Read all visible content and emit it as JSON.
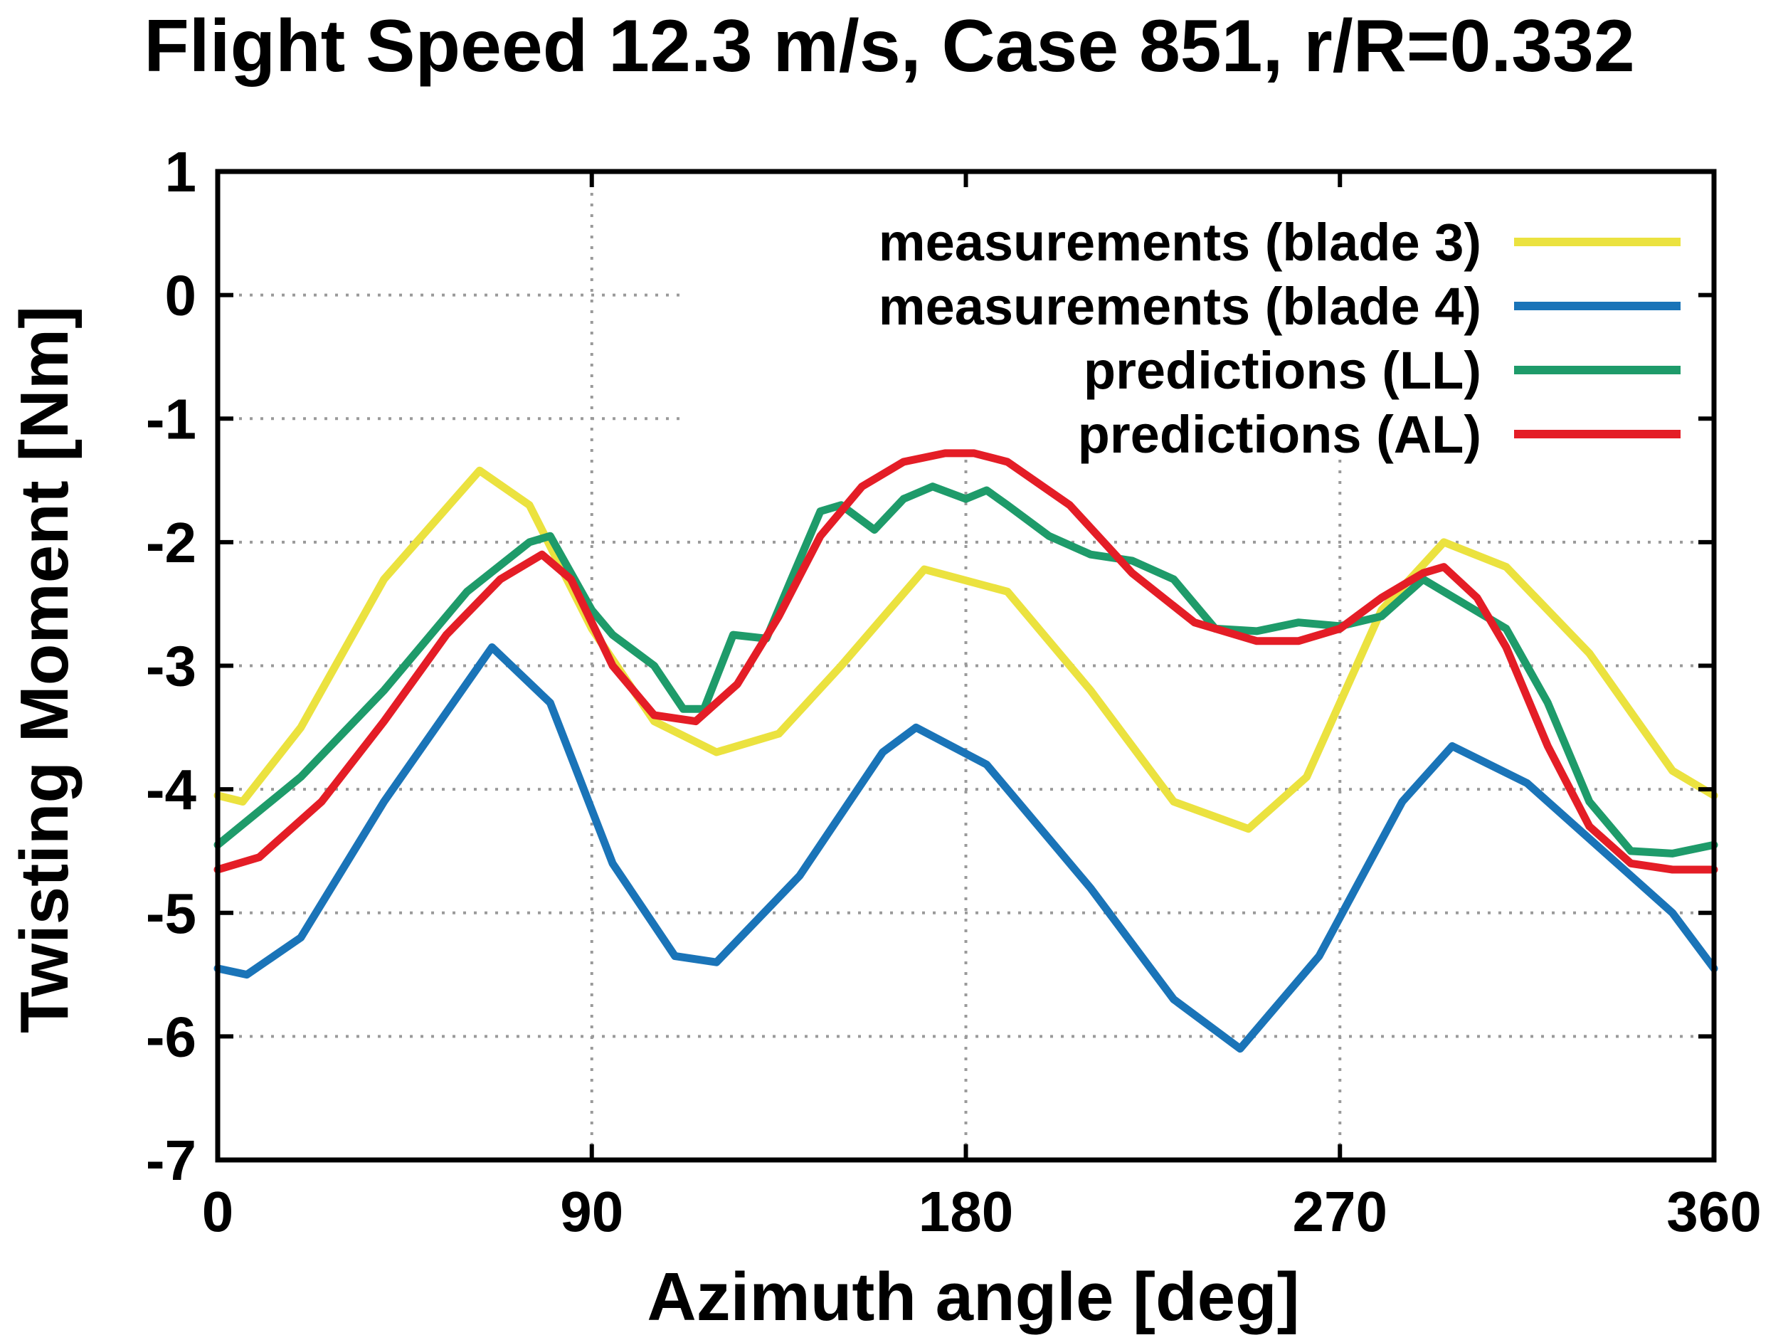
{
  "chart_data": {
    "type": "line",
    "title": "Flight Speed 12.3 m/s, Case 851, r/R=0.332",
    "xlabel": "Azimuth angle [deg]",
    "ylabel": "Twisting Moment [Nm]",
    "xlim": [
      0,
      360
    ],
    "ylim": [
      -7,
      1
    ],
    "xticks": [
      0,
      90,
      180,
      270,
      360
    ],
    "xtick_labels": [
      "0",
      "90",
      "180",
      "270",
      "360"
    ],
    "yticks": [
      1,
      0,
      -1,
      -2,
      -3,
      -4,
      -5,
      -6,
      -7
    ],
    "ytick_labels": [
      "1",
      "0",
      "-1",
      "-2",
      "-3",
      "-4",
      "-5",
      "-6",
      "-7"
    ],
    "grid": true,
    "legend_position": "top-right",
    "series": [
      {
        "name": "measurements (blade 3)",
        "color": "#ebe23f",
        "x": [
          0,
          6,
          20,
          40,
          63,
          75,
          90,
          105,
          120,
          135,
          150,
          170,
          190,
          210,
          230,
          248,
          262,
          280,
          295,
          310,
          330,
          350,
          360
        ],
        "y": [
          -4.05,
          -4.1,
          -3.5,
          -2.3,
          -1.42,
          -1.7,
          -2.7,
          -3.45,
          -3.7,
          -3.55,
          -3.0,
          -2.22,
          -2.4,
          -3.2,
          -4.1,
          -4.32,
          -3.9,
          -2.55,
          -2.0,
          -2.2,
          -2.9,
          -3.85,
          -4.05
        ]
      },
      {
        "name": "measurements (blade 4)",
        "color": "#1a74b8",
        "x": [
          0,
          7,
          20,
          40,
          66,
          80,
          95,
          110,
          120,
          140,
          160,
          168,
          185,
          210,
          230,
          246,
          265,
          285,
          297,
          315,
          335,
          350,
          360
        ],
        "y": [
          -5.45,
          -5.5,
          -5.2,
          -4.1,
          -2.85,
          -3.3,
          -4.6,
          -5.35,
          -5.4,
          -4.7,
          -3.7,
          -3.5,
          -3.8,
          -4.8,
          -5.7,
          -6.1,
          -5.35,
          -4.1,
          -3.65,
          -3.95,
          -4.55,
          -5.0,
          -5.45
        ]
      },
      {
        "name": "predictions (LL)",
        "color": "#1e9b6a",
        "x": [
          0,
          20,
          40,
          60,
          75,
          80,
          90,
          95,
          105,
          112,
          117,
          124,
          132,
          138,
          145,
          150,
          158,
          165,
          172,
          180,
          185,
          190,
          200,
          210,
          220,
          230,
          240,
          250,
          260,
          270,
          280,
          290,
          300,
          310,
          320,
          330,
          340,
          350,
          360
        ],
        "y": [
          -4.45,
          -3.9,
          -3.2,
          -2.4,
          -2.0,
          -1.95,
          -2.55,
          -2.75,
          -3.0,
          -3.35,
          -3.35,
          -2.75,
          -2.78,
          -2.3,
          -1.75,
          -1.7,
          -1.9,
          -1.65,
          -1.55,
          -1.65,
          -1.58,
          -1.7,
          -1.95,
          -2.1,
          -2.15,
          -2.3,
          -2.7,
          -2.72,
          -2.65,
          -2.68,
          -2.6,
          -2.3,
          -2.5,
          -2.7,
          -3.3,
          -4.1,
          -4.5,
          -4.52,
          -4.45
        ]
      },
      {
        "name": "predictions (AL)",
        "color": "#e41d26",
        "x": [
          0,
          10,
          25,
          40,
          55,
          68,
          78,
          85,
          95,
          105,
          115,
          125,
          135,
          145,
          155,
          165,
          175,
          182,
          190,
          205,
          220,
          235,
          250,
          260,
          270,
          280,
          290,
          295,
          303,
          310,
          320,
          330,
          340,
          350,
          360
        ],
        "y": [
          -4.65,
          -4.55,
          -4.1,
          -3.45,
          -2.75,
          -2.3,
          -2.1,
          -2.3,
          -3.0,
          -3.4,
          -3.45,
          -3.15,
          -2.6,
          -1.95,
          -1.55,
          -1.35,
          -1.28,
          -1.28,
          -1.35,
          -1.7,
          -2.25,
          -2.65,
          -2.8,
          -2.8,
          -2.7,
          -2.45,
          -2.25,
          -2.2,
          -2.45,
          -2.85,
          -3.65,
          -4.3,
          -4.6,
          -4.65,
          -4.65
        ]
      }
    ]
  }
}
